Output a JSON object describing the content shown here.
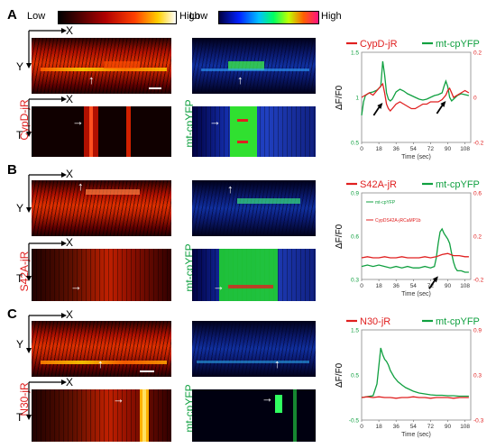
{
  "colorbars": {
    "red": {
      "low": "Low",
      "high": "High"
    },
    "blue": {
      "low": "Low",
      "high": "High"
    }
  },
  "axis_letters": {
    "x": "X",
    "y": "Y",
    "t": "T"
  },
  "panels": [
    {
      "letter": "A",
      "red_label": "CypD-jR",
      "green_label": "mt-cpYFP"
    },
    {
      "letter": "B",
      "red_label": "S42A-jR",
      "green_label": "mt-cpYFP"
    },
    {
      "letter": "C",
      "red_label": "N30-jR",
      "green_label": "mt-cpYFP"
    }
  ],
  "colors": {
    "red": "#e02020",
    "green": "#10a040"
  },
  "chart_data": [
    {
      "type": "line",
      "legend": [
        "CypD-jR",
        "mt-cpYFP"
      ],
      "xlabel": "Time (sec)",
      "ylabel": "ΔF/F0",
      "xlim": [
        0,
        114
      ],
      "xticks": [
        0,
        18,
        36,
        54,
        72,
        90,
        108
      ],
      "ylim_left": [
        0.5,
        1.5
      ],
      "yticks_left": [
        "0.5",
        "1",
        "1.5"
      ],
      "ylim_right": [
        -0.2,
        0.2
      ],
      "yticks_right": [
        "-0.2",
        "0",
        "0.2"
      ],
      "series": [
        {
          "name": "mt-cpYFP",
          "axis": "left",
          "color": "#10a040",
          "x": [
            0,
            2,
            4,
            8,
            12,
            16,
            20,
            22,
            24,
            26,
            28,
            30,
            32,
            36,
            40,
            44,
            48,
            52,
            56,
            60,
            64,
            68,
            72,
            76,
            80,
            84,
            86,
            88,
            90,
            92,
            94,
            96,
            100,
            104,
            108,
            112
          ],
          "y": [
            0.8,
            0.95,
            1.02,
            1.05,
            1.06,
            1.08,
            1.12,
            1.4,
            1.25,
            1.05,
            0.98,
            0.96,
            0.98,
            1.06,
            1.09,
            1.07,
            1.04,
            1.02,
            1.0,
            0.98,
            0.97,
            0.98,
            1.0,
            1.02,
            1.03,
            1.05,
            1.12,
            1.18,
            1.12,
            1.0,
            0.96,
            0.98,
            1.02,
            1.04,
            1.03,
            1.02
          ]
        },
        {
          "name": "CypD-jR",
          "axis": "right",
          "color": "#e02020",
          "x": [
            0,
            4,
            8,
            12,
            16,
            20,
            22,
            24,
            26,
            28,
            30,
            32,
            36,
            40,
            44,
            48,
            52,
            56,
            60,
            64,
            68,
            72,
            76,
            80,
            84,
            88,
            90,
            92,
            94,
            96,
            100,
            104,
            108,
            112
          ],
          "y": [
            0.0,
            0.01,
            0.02,
            0.01,
            0.03,
            0.05,
            0.06,
            0.02,
            -0.03,
            -0.05,
            -0.06,
            -0.05,
            -0.03,
            -0.02,
            -0.03,
            -0.04,
            -0.05,
            -0.05,
            -0.04,
            -0.03,
            -0.03,
            -0.02,
            -0.02,
            -0.02,
            -0.01,
            0.01,
            0.03,
            0.04,
            0.02,
            0.0,
            0.01,
            0.02,
            0.03,
            0.02
          ]
        }
      ]
    },
    {
      "type": "line",
      "legend": [
        "S42A-jR",
        "mt-cpYFP"
      ],
      "inset_legend": [
        "mt-cpYFP",
        "CypDS42A-jRCaMP1b"
      ],
      "xlabel": "Time (sec)",
      "ylabel": "ΔF/F0",
      "xlim": [
        0,
        114
      ],
      "xticks": [
        0,
        18,
        36,
        54,
        72,
        90,
        108
      ],
      "ylim_left": [
        0.3,
        0.9
      ],
      "yticks_left": [
        "0.3",
        "0.6",
        "0.9"
      ],
      "ylim_right": [
        -0.2,
        0.6
      ],
      "yticks_right": [
        "-0.2",
        "0.2",
        "0.6"
      ],
      "series": [
        {
          "name": "mt-cpYFP",
          "axis": "left",
          "color": "#10a040",
          "x": [
            0,
            6,
            12,
            18,
            24,
            30,
            36,
            42,
            48,
            54,
            60,
            66,
            72,
            76,
            78,
            80,
            82,
            84,
            86,
            88,
            90,
            92,
            94,
            96,
            98,
            100,
            104,
            108,
            112
          ],
          "y": [
            0.39,
            0.4,
            0.39,
            0.4,
            0.39,
            0.38,
            0.39,
            0.38,
            0.39,
            0.38,
            0.38,
            0.39,
            0.38,
            0.39,
            0.45,
            0.55,
            0.63,
            0.65,
            0.62,
            0.6,
            0.58,
            0.55,
            0.48,
            0.42,
            0.38,
            0.36,
            0.36,
            0.35,
            0.35
          ]
        },
        {
          "name": "S42A-jR",
          "axis": "right",
          "color": "#e02020",
          "x": [
            0,
            6,
            12,
            18,
            24,
            30,
            36,
            42,
            48,
            54,
            60,
            66,
            72,
            78,
            84,
            90,
            96,
            102,
            108,
            112
          ],
          "y": [
            0.0,
            0.01,
            0.0,
            0.0,
            0.01,
            0.0,
            0.0,
            0.01,
            0.0,
            0.0,
            0.0,
            0.01,
            0.0,
            0.01,
            0.03,
            0.04,
            0.02,
            0.02,
            0.01,
            0.01
          ]
        }
      ]
    },
    {
      "type": "line",
      "legend": [
        "N30-jR",
        "mt-cpYFP"
      ],
      "xlabel": "Time (sec)",
      "ylabel": "ΔF/F0",
      "xlim": [
        0,
        114
      ],
      "xticks": [
        0,
        18,
        36,
        54,
        72,
        90,
        108
      ],
      "ylim_left": [
        -0.5,
        1.5
      ],
      "yticks_left": [
        "-0.5",
        "0.5",
        "1.5"
      ],
      "ylim_right": [
        -0.3,
        0.9
      ],
      "yticks_right": [
        "-0.3",
        "0.3",
        "0.9"
      ],
      "series": [
        {
          "name": "mt-cpYFP",
          "axis": "left",
          "color": "#10a040",
          "x": [
            0,
            6,
            12,
            16,
            18,
            20,
            22,
            24,
            26,
            28,
            30,
            34,
            38,
            42,
            46,
            50,
            54,
            60,
            66,
            72,
            78,
            84,
            90,
            96,
            102,
            108,
            112
          ],
          "y": [
            0.0,
            0.02,
            0.04,
            0.3,
            0.7,
            1.1,
            0.95,
            0.85,
            0.8,
            0.72,
            0.6,
            0.45,
            0.35,
            0.28,
            0.22,
            0.18,
            0.14,
            0.1,
            0.08,
            0.06,
            0.05,
            0.05,
            0.04,
            0.04,
            0.03,
            0.03,
            0.03
          ]
        },
        {
          "name": "N30-jR",
          "axis": "right",
          "color": "#e02020",
          "x": [
            0,
            6,
            12,
            18,
            24,
            30,
            36,
            42,
            48,
            54,
            60,
            66,
            72,
            78,
            84,
            90,
            96,
            102,
            108,
            112
          ],
          "y": [
            0.0,
            0.01,
            0.0,
            0.01,
            0.0,
            0.0,
            -0.01,
            0.0,
            0.0,
            0.01,
            0.0,
            0.0,
            -0.01,
            0.0,
            0.0,
            0.0,
            -0.01,
            0.0,
            0.0,
            0.0
          ]
        }
      ]
    }
  ]
}
